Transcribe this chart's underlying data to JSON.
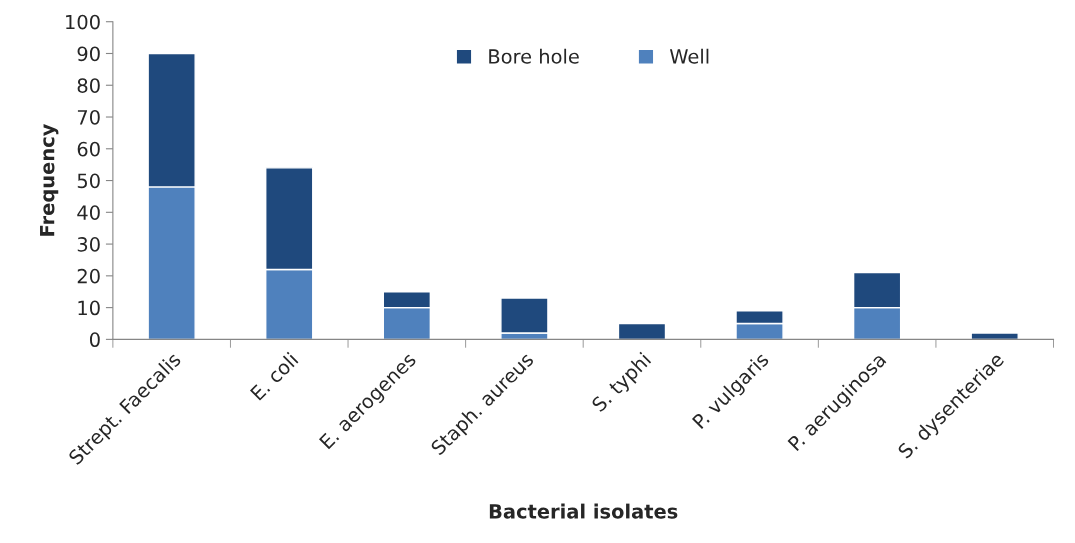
{
  "chart_data": {
    "type": "bar",
    "stacked": true,
    "xlabel": "Bacterial isolates",
    "ylabel": "Frequency",
    "categories": [
      "Strept. Faecalis",
      "E. coli",
      "E. aerogenes",
      "Staph. aureus",
      "S. typhi",
      "P. vulgaris",
      "P. aeruginosa",
      "S. dysenteriae"
    ],
    "series": [
      {
        "name": "Well",
        "color": "#4f81bd",
        "values": [
          48,
          22,
          10,
          2,
          0,
          5,
          10,
          0
        ]
      },
      {
        "name": "Bore hole",
        "color": "#1f497d",
        "values": [
          42,
          32,
          5,
          11,
          5,
          4,
          11,
          2
        ]
      }
    ],
    "ylim": [
      0,
      100
    ],
    "yticks": [
      0,
      10,
      20,
      30,
      40,
      50,
      60,
      70,
      80,
      90,
      100
    ],
    "grid": false,
    "legend": "top"
  }
}
